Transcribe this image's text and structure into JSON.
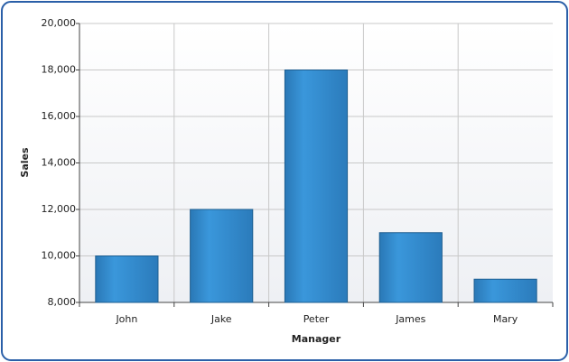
{
  "chart_data": {
    "type": "bar",
    "x_label": "Manager",
    "y_label": "Sales",
    "categories": [
      "John",
      "Jake",
      "Peter",
      "James",
      "Mary"
    ],
    "values": [
      10000,
      12000,
      18000,
      11000,
      9000
    ],
    "color": "#2f86c8",
    "ylim": [
      8000,
      20000
    ],
    "yticks": [
      {
        "value": 8000,
        "label": "8,000"
      },
      {
        "value": 10000,
        "label": "10,000"
      },
      {
        "value": 12000,
        "label": "12,000"
      },
      {
        "value": 14000,
        "label": "14,000"
      },
      {
        "value": 16000,
        "label": "16,000"
      },
      {
        "value": 18000,
        "label": "18,000"
      },
      {
        "value": 20000,
        "label": "20,000"
      }
    ],
    "grid": true
  }
}
